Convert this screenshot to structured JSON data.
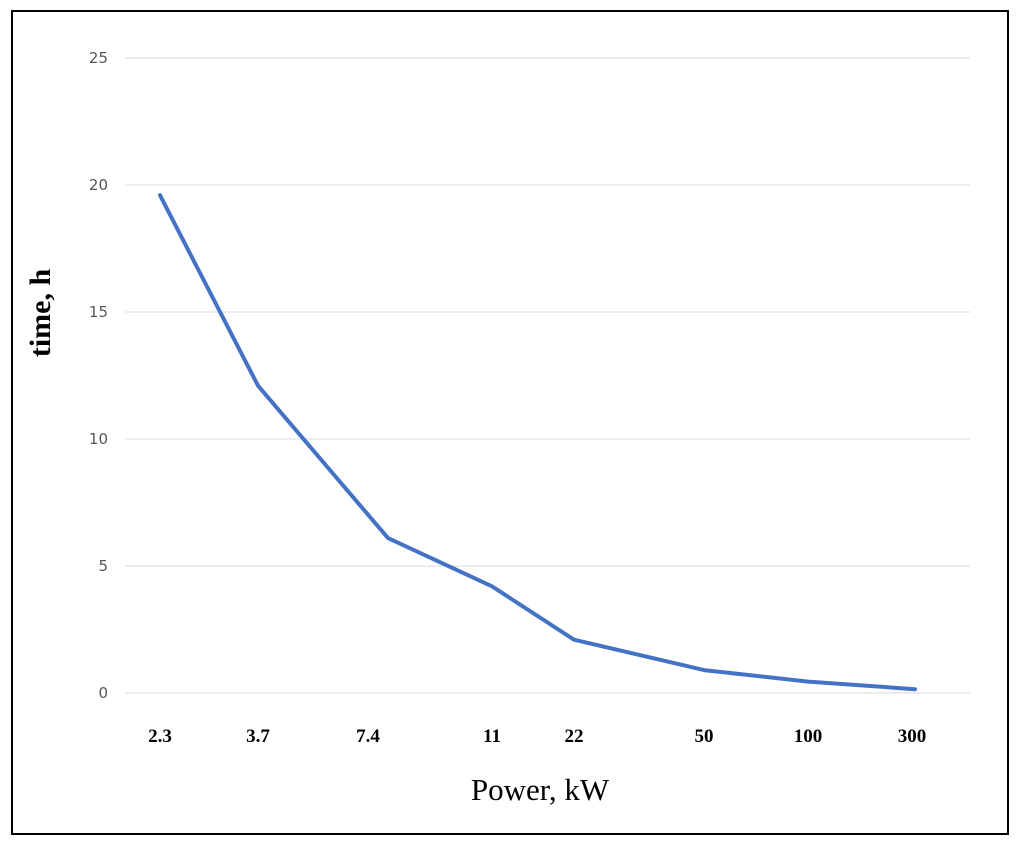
{
  "chart_data": {
    "type": "line",
    "title": "",
    "xlabel": "Power, kW",
    "ylabel": "time, h",
    "categories": [
      "2.3",
      "3.7",
      "7.4",
      "11",
      "22",
      "50",
      "100",
      "300"
    ],
    "series": [
      {
        "values": [
          19.6,
          12.1,
          6.1,
          4.2,
          2.1,
          0.9,
          0.45,
          0.15
        ]
      }
    ],
    "yticks": [
      "0",
      "5",
      "10",
      "15",
      "20",
      "25"
    ],
    "ylim": [
      0,
      25
    ],
    "grid": true,
    "legend": "none",
    "line_color": "#4472C4",
    "grid_color": "#D9D9D9"
  }
}
